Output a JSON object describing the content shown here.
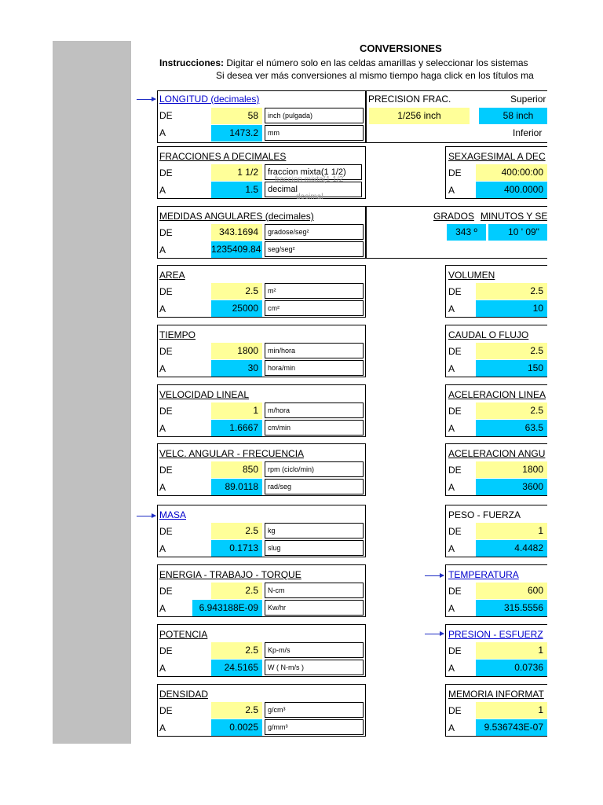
{
  "title": "CONVERSIONES",
  "instructions": {
    "label": "Instrucciones:",
    "line1": " Digitar el número solo en las celdas amarillas y seleccionar los sistemas",
    "line2": "Si desea ver más conversiones al mismo tiempo haga click en los títulos ma"
  },
  "row_labels": {
    "de": "DE",
    "a": "A"
  },
  "longitud": {
    "title": "LONGITUD (decimales)",
    "de_value": "58",
    "de_unit": "inch (pulgada)",
    "a_value": "1473.2",
    "a_unit": "mm"
  },
  "precision": {
    "title": "PRECISION FRAC.",
    "value": "1/256  inch",
    "superior_label": "Superior",
    "superior_value": "58 inch",
    "inferior_label": "Inferior"
  },
  "fracciones": {
    "title": "FRACCIONES A DECIMALES",
    "de_value": "1 1/2",
    "de_unit": "fraccion mixta(1 1/2)",
    "a_value": "1.5",
    "a_unit": "decimal",
    "ghost1": "fraccion mixta(1 1/2",
    "ghost2": "decimal"
  },
  "sexagesimal": {
    "title": "SEXAGESIMAL A DEC",
    "de_value": "400:00:00",
    "a_value": "400.0000"
  },
  "angulares": {
    "title": "MEDIDAS ANGULARES (decimales)",
    "de_value": "343.1694",
    "de_unit": "gradose/seg²",
    "a_value": "1235409.84",
    "a_unit": "seg/seg²"
  },
  "grados": {
    "title_a": "GRADOS",
    "title_b": "MINUTOS Y SE",
    "deg_value": "343 º",
    "min_value": "10 ' 09\""
  },
  "area": {
    "title": "AREA",
    "de_value": "2.5",
    "de_unit": "m²",
    "a_value": "25000",
    "a_unit": "cm²"
  },
  "volumen": {
    "title": "VOLUMEN",
    "de_value": "2.5",
    "a_value": "10"
  },
  "tiempo": {
    "title": "TIEMPO",
    "de_value": "1800",
    "de_unit": "min/hora",
    "a_value": "30",
    "a_unit": "hora/min"
  },
  "caudal": {
    "title": "CAUDAL O FLUJO",
    "de_value": "2.5",
    "a_value": "150"
  },
  "velocidad": {
    "title": "VELOCIDAD LINEAL",
    "de_value": "1",
    "de_unit": "m/hora",
    "a_value": "1.6667",
    "a_unit": "cm/min"
  },
  "aceleracion_lineal": {
    "title": "ACELERACION LINEA",
    "de_value": "2.5",
    "a_value": "63.5"
  },
  "velc_angular": {
    "title": "VELC. ANGULAR - FRECUENCIA",
    "de_value": "850",
    "de_unit": "rpm (ciclo/min)",
    "a_value": "89.0118",
    "a_unit": "rad/seg"
  },
  "aceleracion_angular": {
    "title": "ACELERACION ANGU",
    "de_value": "1800",
    "a_value": "3600"
  },
  "masa": {
    "title": "MASA",
    "de_value": "2.5",
    "de_unit": "kg",
    "a_value": "0.1713",
    "a_unit": "slug"
  },
  "peso": {
    "title": "PESO - FUERZA",
    "de_value": "1",
    "a_value": "4.4482"
  },
  "energia": {
    "title": "ENERGIA - TRABAJO - TORQUE",
    "de_value": "2.5",
    "de_unit": "N-cm",
    "a_value": "6.943188E-09",
    "a_unit": "Kw/hr"
  },
  "temperatura": {
    "title": "TEMPERATURA",
    "de_value": "600",
    "a_value": "315.5556"
  },
  "potencia": {
    "title": "POTENCIA",
    "de_value": "2.5",
    "de_unit": "Kp-m/s",
    "a_value": "24.5165",
    "a_unit": "W ( N-m/s )"
  },
  "presion": {
    "title": "PRESION - ESFUERZ",
    "de_value": "1",
    "a_value": "0.0736"
  },
  "densidad": {
    "title": "DENSIDAD",
    "de_value": "2.5",
    "de_unit": "g/cm³",
    "a_value": "0.0025",
    "a_unit": "g/mm³"
  },
  "memoria": {
    "title": "MEMORIA INFORMAT",
    "de_value": "1",
    "a_value": "9.536743E-07"
  },
  "colors": {
    "input_cell": "#ffff99",
    "result_cell": "#00ccff",
    "link": "#0000cc",
    "arrow": "#1f2ec4",
    "sidebar": "#c0c0c0"
  }
}
